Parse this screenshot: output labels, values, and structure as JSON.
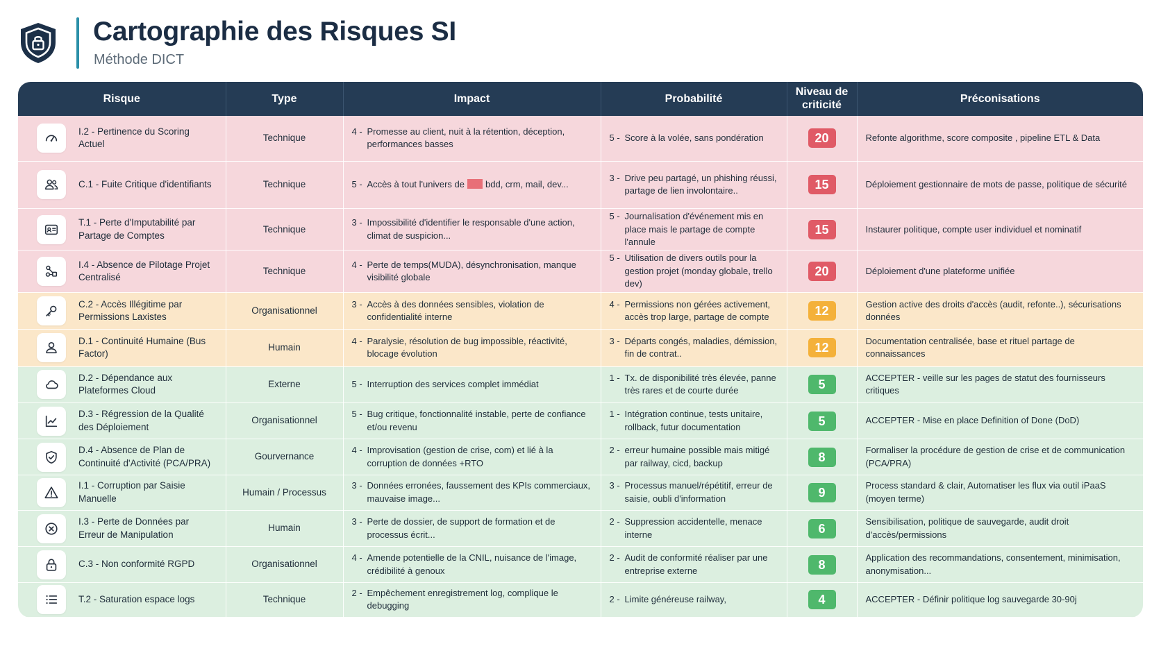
{
  "header": {
    "title": "Cartographie des Risques SI",
    "subtitle": "Méthode DICT",
    "icon": "shield-lock-icon"
  },
  "colors": {
    "header_bg": "#253c55",
    "accent": "#2a8fa8",
    "row_red": "#f6d7dc",
    "row_orange": "#fbe7c9",
    "row_green": "#dcefe0",
    "badge_red": "#e05a66",
    "badge_orange": "#f4b13a",
    "badge_green": "#4fb86c"
  },
  "columns": [
    "Risque",
    "Type",
    "Impact",
    "Probabilité",
    "Niveau de criticité",
    "Préconisations"
  ],
  "rows": [
    {
      "severity": "red",
      "icon": "gauge-icon",
      "risk": "I.2 - Pertinence du Scoring Actuel",
      "type": "Technique",
      "impact_n": "4 -",
      "impact": "Promesse au client, nuit à la rétention, déception, performances basses",
      "prob_n": "5 -",
      "prob": "Score à la volée, sans pondération",
      "level": "20",
      "reco": "Refonte algorithme, score composite , pipeline ETL & Data"
    },
    {
      "severity": "red",
      "icon": "users-icon",
      "risk": "C.1 - Fuite Critique d'identifiants",
      "type": "Technique",
      "impact_n": "5 -",
      "impact_pre": "Accès à tout l'univers de",
      "impact_post": "bdd, crm, mail, dev...",
      "prob_n": "3 -",
      "prob": "Drive peu partagé, un phishing réussi, partage de lien involontaire..",
      "level": "15",
      "reco": "Déploiement gestionnaire de mots de passe, politique de sécurité"
    },
    {
      "severity": "red",
      "icon": "id-card-icon",
      "risk": "T.1 - Perte d'Imputabilité par Partage de Comptes",
      "type": "Technique",
      "impact_n": "3 -",
      "impact": "Impossibilité d'identifier le responsable d'une action, climat de suspicion...",
      "prob_n": "5 -",
      "prob": "Journalisation d'événement mis en place mais le partage de compte l'annule",
      "level": "15",
      "reco": "Instaurer politique, compte user individuel et nominatif"
    },
    {
      "severity": "red",
      "icon": "nodes-icon",
      "risk": "I.4 - Absence de Pilotage Projet Centralisé",
      "type": "Technique",
      "impact_n": "4 -",
      "impact": "Perte de temps(MUDA), désynchronisation, manque visibilité globale",
      "prob_n": "5 -",
      "prob": "Utilisation de divers outils pour la gestion projet (monday globale, trello dev)",
      "level": "20",
      "reco": "Déploiement d'une plateforme unifiée"
    },
    {
      "severity": "orange",
      "icon": "key-icon",
      "risk": "C.2 - Accès Illégitime par Permissions Laxistes",
      "type": "Organisationnel",
      "impact_n": "3 -",
      "impact": "Accès à des données sensibles, violation de confidentialité interne",
      "prob_n": "4 -",
      "prob": "Permissions non gérées activement, accès trop large, partage de compte",
      "level": "12",
      "reco": "Gestion active des droits d'accès (audit, refonte..), sécurisations données"
    },
    {
      "severity": "orange",
      "icon": "user-icon",
      "risk": "D.1 - Continuité Humaine (Bus Factor)",
      "type": "Humain",
      "impact_n": "4 -",
      "impact": "Paralysie, résolution de bug impossible, réactivité, blocage évolution",
      "prob_n": "3 -",
      "prob": "Départs congés, maladies, démission, fin de contrat..",
      "level": "12",
      "reco": "Documentation centralisée, base et rituel partage de connaissances"
    },
    {
      "severity": "green",
      "icon": "cloud-icon",
      "risk": "D.2 - Dépendance aux Plateformes Cloud",
      "type": "Externe",
      "impact_n": "5 -",
      "impact": "Interruption des services complet immédiat",
      "prob_n": "1 -",
      "prob": "Tx. de disponibilité très élevée, panne très rares et de courte durée",
      "level": "5",
      "reco": "ACCEPTER - veille sur les pages de statut des fournisseurs critiques"
    },
    {
      "severity": "green",
      "icon": "line-chart-icon",
      "risk": "D.3 - Régression de la Qualité des Déploiement",
      "type": "Organisationnel",
      "impact_n": "5 -",
      "impact": "Bug critique, fonctionnalité instable, perte de confiance et/ou revenu",
      "prob_n": "1 -",
      "prob": "Intégration continue, tests unitaire, rollback, futur documentation",
      "level": "5",
      "reco": "ACCEPTER - Mise en place Definition of Done (DoD)"
    },
    {
      "severity": "green",
      "icon": "shield-check-icon",
      "risk": "D.4 - Absence de Plan de Continuité d'Activité (PCA/PRA)",
      "type": "Gourvernance",
      "impact_n": "4 -",
      "impact": "Improvisation (gestion de crise, com) et lié à la corruption de données +RTO",
      "prob_n": "2 -",
      "prob": "erreur humaine possible mais mitigé par railway, cicd, backup",
      "level": "8",
      "reco": "Formaliser la procédure de gestion de crise et de communication (PCA/PRA)"
    },
    {
      "severity": "green",
      "icon": "warning-icon",
      "risk": "I.1 - Corruption par Saisie Manuelle",
      "type": "Humain / Processus",
      "impact_n": "3 -",
      "impact": "Données erronées, faussement des KPIs commerciaux, mauvaise image...",
      "prob_n": "3 -",
      "prob": "Processus manuel/répétitif, erreur de saisie, oubli d'information",
      "level": "9",
      "reco": "Process standard & clair, Automatiser les flux via outil iPaaS (moyen terme)"
    },
    {
      "severity": "green",
      "icon": "circle-x-icon",
      "risk": "I.3 - Perte de Données par Erreur de Manipulation",
      "type": "Humain",
      "impact_n": "3 -",
      "impact": "Perte de dossier, de support de formation et de processus écrit...",
      "prob_n": "2 -",
      "prob": "Suppression accidentelle, menace interne",
      "level": "6",
      "reco": "Sensibilisation, politique de sauvegarde, audit droit d'accès/permissions"
    },
    {
      "severity": "green",
      "icon": "lock-icon",
      "risk": "C.3 - Non conformité RGPD",
      "type": "Organisationnel",
      "impact_n": "4 -",
      "impact": "Amende potentielle de la CNIL, nuisance de l'image, crédibilité à genoux",
      "prob_n": "2 -",
      "prob": "Audit de conformité réaliser par une entreprise externe",
      "level": "8",
      "reco": "Application des recommandations, consentement, minimisation, anonymisation..."
    },
    {
      "severity": "green",
      "icon": "list-icon",
      "risk": "T.2 - Saturation espace logs",
      "type": "Technique",
      "impact_n": "2 -",
      "impact": "Empêchement enregistrement log, complique le debugging",
      "prob_n": "2 -",
      "prob": "Limite généreuse railway,",
      "level": "4",
      "reco": "ACCEPTER - Définir politique log sauvegarde 30-90j"
    }
  ]
}
